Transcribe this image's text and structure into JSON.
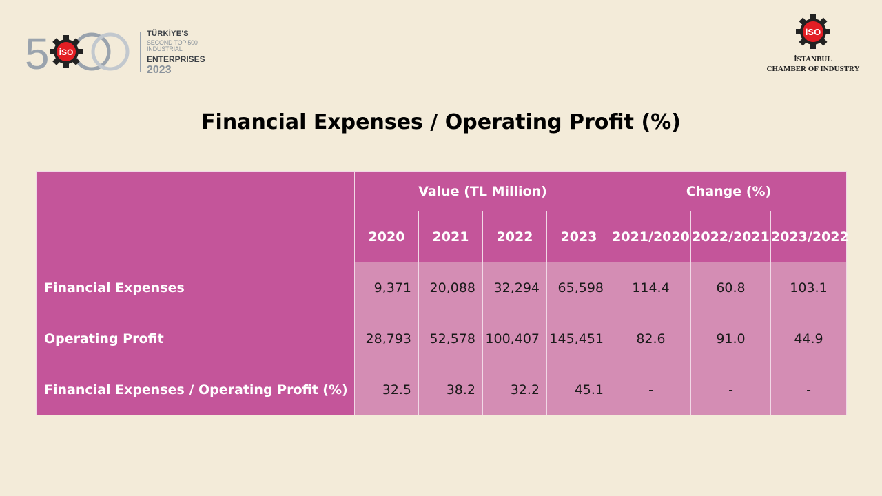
{
  "logo_left": {
    "emblem_text": "500",
    "badge_text": "İSO",
    "line1": "TÜRKİYE'S",
    "line2": "SECOND TOP 500 INDUSTRIAL",
    "line3": "ENTERPRISES",
    "line4": "2023",
    "colors": {
      "grey": "#9aa3ad",
      "red": "#e31e24",
      "dark": "#3a3f45"
    }
  },
  "logo_right": {
    "badge_text": "İSO",
    "org_line1": "İSTANBUL",
    "org_line2": "CHAMBER OF INDUSTRY",
    "colors": {
      "gear": "#222222",
      "red": "#e31e24"
    }
  },
  "title": "Financial Expenses / Operating Profit (%)",
  "table": {
    "group_headers": {
      "value": "Value (TL Million)",
      "change": "Change (%)"
    },
    "years": [
      "2020",
      "2021",
      "2022",
      "2023"
    ],
    "changes": [
      "2021/2020",
      "2022/2021",
      "2023/2022"
    ],
    "rows": [
      {
        "label": "Financial Expenses",
        "values": [
          "9,371",
          "20,088",
          "32,294",
          "65,598"
        ],
        "changes": [
          "114.4",
          "60.8",
          "103.1"
        ]
      },
      {
        "label": "Operating Profit",
        "values": [
          "28,793",
          "52,578",
          "100,407",
          "145,451"
        ],
        "changes": [
          "82.6",
          "91.0",
          "44.9"
        ]
      },
      {
        "label": "Financial Expenses / Operating Profit (%)",
        "values": [
          "32.5",
          "38.2",
          "32.2",
          "45.1"
        ],
        "changes": [
          "-",
          "-",
          "-"
        ]
      }
    ],
    "colors": {
      "header": "#c4559a",
      "cell": "#d48db4",
      "border": "#f1d8e6"
    }
  }
}
